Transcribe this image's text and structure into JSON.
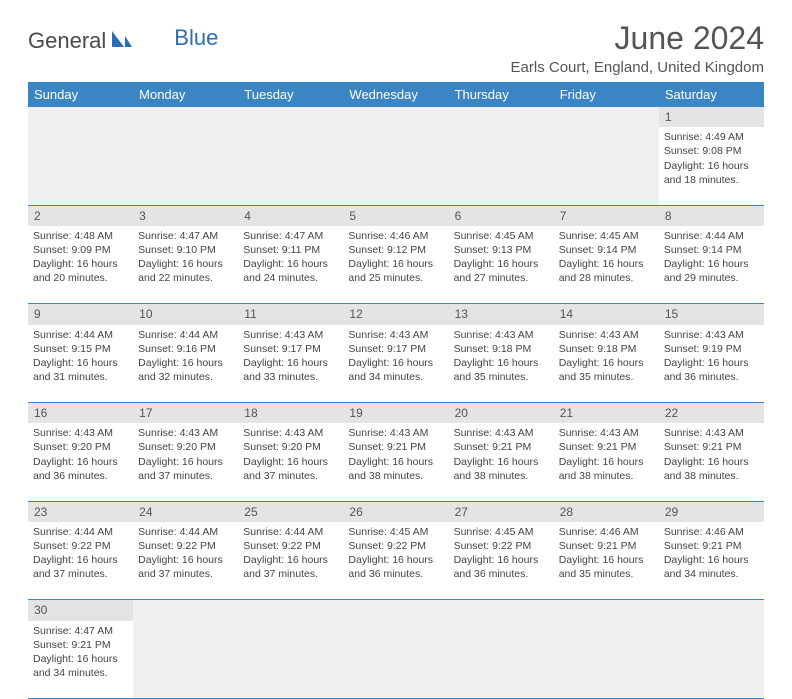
{
  "brand": {
    "part1": "General",
    "part2": "Blue"
  },
  "title": "June 2024",
  "location": "Earls Court, England, United Kingdom",
  "colors": {
    "header_bg": "#3b85c5",
    "header_text": "#ffffff",
    "daynum_bg": "#e4e4e4",
    "border": "#3b85c5",
    "brand_blue": "#2a6fb5",
    "brand_gray": "#4a4a4a"
  },
  "day_headers": [
    "Sunday",
    "Monday",
    "Tuesday",
    "Wednesday",
    "Thursday",
    "Friday",
    "Saturday"
  ],
  "weeks": [
    [
      null,
      null,
      null,
      null,
      null,
      null,
      {
        "n": "1",
        "sr": "Sunrise: 4:49 AM",
        "ss": "Sunset: 9:08 PM",
        "d1": "Daylight: 16 hours",
        "d2": "and 18 minutes."
      }
    ],
    [
      {
        "n": "2",
        "sr": "Sunrise: 4:48 AM",
        "ss": "Sunset: 9:09 PM",
        "d1": "Daylight: 16 hours",
        "d2": "and 20 minutes."
      },
      {
        "n": "3",
        "sr": "Sunrise: 4:47 AM",
        "ss": "Sunset: 9:10 PM",
        "d1": "Daylight: 16 hours",
        "d2": "and 22 minutes."
      },
      {
        "n": "4",
        "sr": "Sunrise: 4:47 AM",
        "ss": "Sunset: 9:11 PM",
        "d1": "Daylight: 16 hours",
        "d2": "and 24 minutes."
      },
      {
        "n": "5",
        "sr": "Sunrise: 4:46 AM",
        "ss": "Sunset: 9:12 PM",
        "d1": "Daylight: 16 hours",
        "d2": "and 25 minutes."
      },
      {
        "n": "6",
        "sr": "Sunrise: 4:45 AM",
        "ss": "Sunset: 9:13 PM",
        "d1": "Daylight: 16 hours",
        "d2": "and 27 minutes."
      },
      {
        "n": "7",
        "sr": "Sunrise: 4:45 AM",
        "ss": "Sunset: 9:14 PM",
        "d1": "Daylight: 16 hours",
        "d2": "and 28 minutes."
      },
      {
        "n": "8",
        "sr": "Sunrise: 4:44 AM",
        "ss": "Sunset: 9:14 PM",
        "d1": "Daylight: 16 hours",
        "d2": "and 29 minutes."
      }
    ],
    [
      {
        "n": "9",
        "sr": "Sunrise: 4:44 AM",
        "ss": "Sunset: 9:15 PM",
        "d1": "Daylight: 16 hours",
        "d2": "and 31 minutes."
      },
      {
        "n": "10",
        "sr": "Sunrise: 4:44 AM",
        "ss": "Sunset: 9:16 PM",
        "d1": "Daylight: 16 hours",
        "d2": "and 32 minutes."
      },
      {
        "n": "11",
        "sr": "Sunrise: 4:43 AM",
        "ss": "Sunset: 9:17 PM",
        "d1": "Daylight: 16 hours",
        "d2": "and 33 minutes."
      },
      {
        "n": "12",
        "sr": "Sunrise: 4:43 AM",
        "ss": "Sunset: 9:17 PM",
        "d1": "Daylight: 16 hours",
        "d2": "and 34 minutes."
      },
      {
        "n": "13",
        "sr": "Sunrise: 4:43 AM",
        "ss": "Sunset: 9:18 PM",
        "d1": "Daylight: 16 hours",
        "d2": "and 35 minutes."
      },
      {
        "n": "14",
        "sr": "Sunrise: 4:43 AM",
        "ss": "Sunset: 9:18 PM",
        "d1": "Daylight: 16 hours",
        "d2": "and 35 minutes."
      },
      {
        "n": "15",
        "sr": "Sunrise: 4:43 AM",
        "ss": "Sunset: 9:19 PM",
        "d1": "Daylight: 16 hours",
        "d2": "and 36 minutes."
      }
    ],
    [
      {
        "n": "16",
        "sr": "Sunrise: 4:43 AM",
        "ss": "Sunset: 9:20 PM",
        "d1": "Daylight: 16 hours",
        "d2": "and 36 minutes."
      },
      {
        "n": "17",
        "sr": "Sunrise: 4:43 AM",
        "ss": "Sunset: 9:20 PM",
        "d1": "Daylight: 16 hours",
        "d2": "and 37 minutes."
      },
      {
        "n": "18",
        "sr": "Sunrise: 4:43 AM",
        "ss": "Sunset: 9:20 PM",
        "d1": "Daylight: 16 hours",
        "d2": "and 37 minutes."
      },
      {
        "n": "19",
        "sr": "Sunrise: 4:43 AM",
        "ss": "Sunset: 9:21 PM",
        "d1": "Daylight: 16 hours",
        "d2": "and 38 minutes."
      },
      {
        "n": "20",
        "sr": "Sunrise: 4:43 AM",
        "ss": "Sunset: 9:21 PM",
        "d1": "Daylight: 16 hours",
        "d2": "and 38 minutes."
      },
      {
        "n": "21",
        "sr": "Sunrise: 4:43 AM",
        "ss": "Sunset: 9:21 PM",
        "d1": "Daylight: 16 hours",
        "d2": "and 38 minutes."
      },
      {
        "n": "22",
        "sr": "Sunrise: 4:43 AM",
        "ss": "Sunset: 9:21 PM",
        "d1": "Daylight: 16 hours",
        "d2": "and 38 minutes."
      }
    ],
    [
      {
        "n": "23",
        "sr": "Sunrise: 4:44 AM",
        "ss": "Sunset: 9:22 PM",
        "d1": "Daylight: 16 hours",
        "d2": "and 37 minutes."
      },
      {
        "n": "24",
        "sr": "Sunrise: 4:44 AM",
        "ss": "Sunset: 9:22 PM",
        "d1": "Daylight: 16 hours",
        "d2": "and 37 minutes."
      },
      {
        "n": "25",
        "sr": "Sunrise: 4:44 AM",
        "ss": "Sunset: 9:22 PM",
        "d1": "Daylight: 16 hours",
        "d2": "and 37 minutes."
      },
      {
        "n": "26",
        "sr": "Sunrise: 4:45 AM",
        "ss": "Sunset: 9:22 PM",
        "d1": "Daylight: 16 hours",
        "d2": "and 36 minutes."
      },
      {
        "n": "27",
        "sr": "Sunrise: 4:45 AM",
        "ss": "Sunset: 9:22 PM",
        "d1": "Daylight: 16 hours",
        "d2": "and 36 minutes."
      },
      {
        "n": "28",
        "sr": "Sunrise: 4:46 AM",
        "ss": "Sunset: 9:21 PM",
        "d1": "Daylight: 16 hours",
        "d2": "and 35 minutes."
      },
      {
        "n": "29",
        "sr": "Sunrise: 4:46 AM",
        "ss": "Sunset: 9:21 PM",
        "d1": "Daylight: 16 hours",
        "d2": "and 34 minutes."
      }
    ],
    [
      {
        "n": "30",
        "sr": "Sunrise: 4:47 AM",
        "ss": "Sunset: 9:21 PM",
        "d1": "Daylight: 16 hours",
        "d2": "and 34 minutes."
      },
      null,
      null,
      null,
      null,
      null,
      null
    ]
  ]
}
